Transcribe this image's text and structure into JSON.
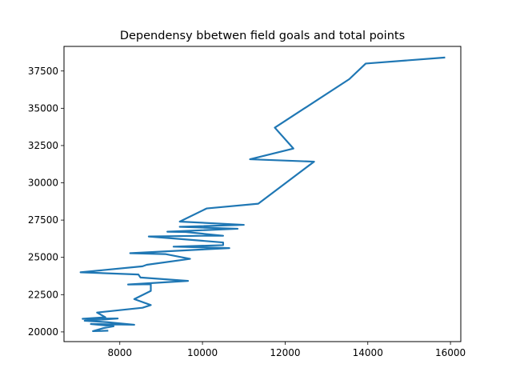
{
  "chart_data": {
    "type": "line",
    "title": "Dependensy bbetwen field goals and total points",
    "xlabel": "",
    "ylabel": "",
    "xlim": [
      6650,
      16250
    ],
    "ylim": [
      19350,
      39150
    ],
    "x_ticks": [
      8000,
      10000,
      12000,
      14000,
      16000
    ],
    "x_tick_labels": [
      "8000",
      "10000",
      "12000",
      "14000",
      "16000"
    ],
    "y_ticks": [
      20000,
      22500,
      25000,
      27500,
      30000,
      32500,
      35000,
      37500
    ],
    "y_tick_labels": [
      "20000",
      "22500",
      "25000",
      "27500",
      "30000",
      "32500",
      "35000",
      "37500"
    ],
    "grid": false,
    "series": [
      {
        "color": "#1f77b4",
        "points": [
          [
            7700,
            20080
          ],
          [
            7350,
            20050
          ],
          [
            7600,
            20250
          ],
          [
            7850,
            20380
          ],
          [
            7300,
            20530
          ],
          [
            8350,
            20480
          ],
          [
            7700,
            20650
          ],
          [
            7150,
            20750
          ],
          [
            7950,
            20900
          ],
          [
            7100,
            20880
          ],
          [
            7650,
            20980
          ],
          [
            7450,
            21300
          ],
          [
            8550,
            21620
          ],
          [
            8750,
            21800
          ],
          [
            8350,
            22200
          ],
          [
            8750,
            22750
          ],
          [
            8750,
            23200
          ],
          [
            8200,
            23180
          ],
          [
            9650,
            23420
          ],
          [
            8500,
            23650
          ],
          [
            8450,
            23850
          ],
          [
            7050,
            24000
          ],
          [
            8550,
            24400
          ],
          [
            8650,
            24500
          ],
          [
            9700,
            24900
          ],
          [
            9100,
            25220
          ],
          [
            8250,
            25280
          ],
          [
            10650,
            25620
          ],
          [
            9300,
            25720
          ],
          [
            10500,
            25820
          ],
          [
            10500,
            26000
          ],
          [
            8700,
            26400
          ],
          [
            10050,
            26450
          ],
          [
            10500,
            26450
          ],
          [
            9600,
            26700
          ],
          [
            9150,
            26720
          ],
          [
            10850,
            26920
          ],
          [
            9450,
            27050
          ],
          [
            11000,
            27180
          ],
          [
            9450,
            27400
          ],
          [
            10100,
            28280
          ],
          [
            11350,
            28600
          ],
          [
            12700,
            31420
          ],
          [
            11150,
            31580
          ],
          [
            12200,
            32300
          ],
          [
            11750,
            33700
          ],
          [
            13550,
            36950
          ],
          [
            13950,
            38000
          ],
          [
            15850,
            38400
          ]
        ]
      }
    ]
  }
}
